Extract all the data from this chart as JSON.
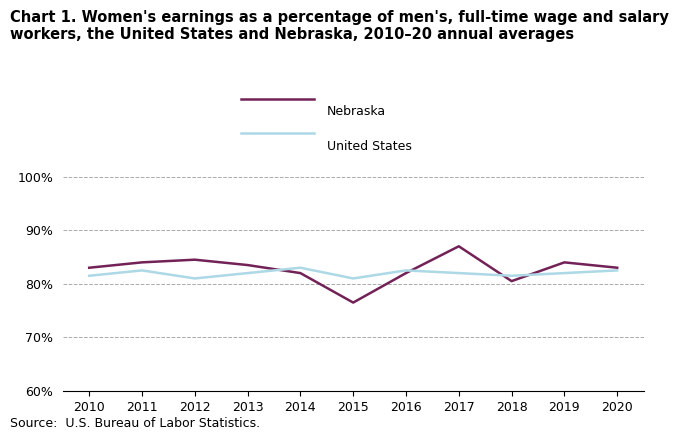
{
  "title_line1": "Chart 1. Women's earnings as a percentage of men's, full-time wage and salary",
  "title_line2": "workers, the United States and Nebraska, 2010–20 annual averages",
  "years": [
    2010,
    2011,
    2012,
    2013,
    2014,
    2015,
    2016,
    2017,
    2018,
    2019,
    2020
  ],
  "nebraska": [
    83.0,
    84.0,
    84.5,
    83.5,
    82.0,
    76.5,
    82.0,
    87.0,
    80.5,
    84.0,
    83.0
  ],
  "united_states": [
    81.5,
    82.5,
    81.0,
    82.0,
    83.0,
    81.0,
    82.5,
    82.0,
    81.5,
    82.0,
    82.5
  ],
  "nebraska_color": "#722257",
  "us_color": "#add8e6",
  "ylim_min": 60,
  "ylim_max": 102,
  "yticks": [
    60,
    70,
    80,
    90,
    100
  ],
  "xlim_min": 2009.5,
  "xlim_max": 2020.5,
  "source": "Source:  U.S. Bureau of Labor Statistics.",
  "legend_nebraska": "Nebraska",
  "legend_us": "United States",
  "background_color": "#ffffff",
  "grid_color": "#aaaaaa",
  "line_width": 1.8,
  "title_fontsize": 10.5,
  "tick_fontsize": 9,
  "source_fontsize": 9
}
